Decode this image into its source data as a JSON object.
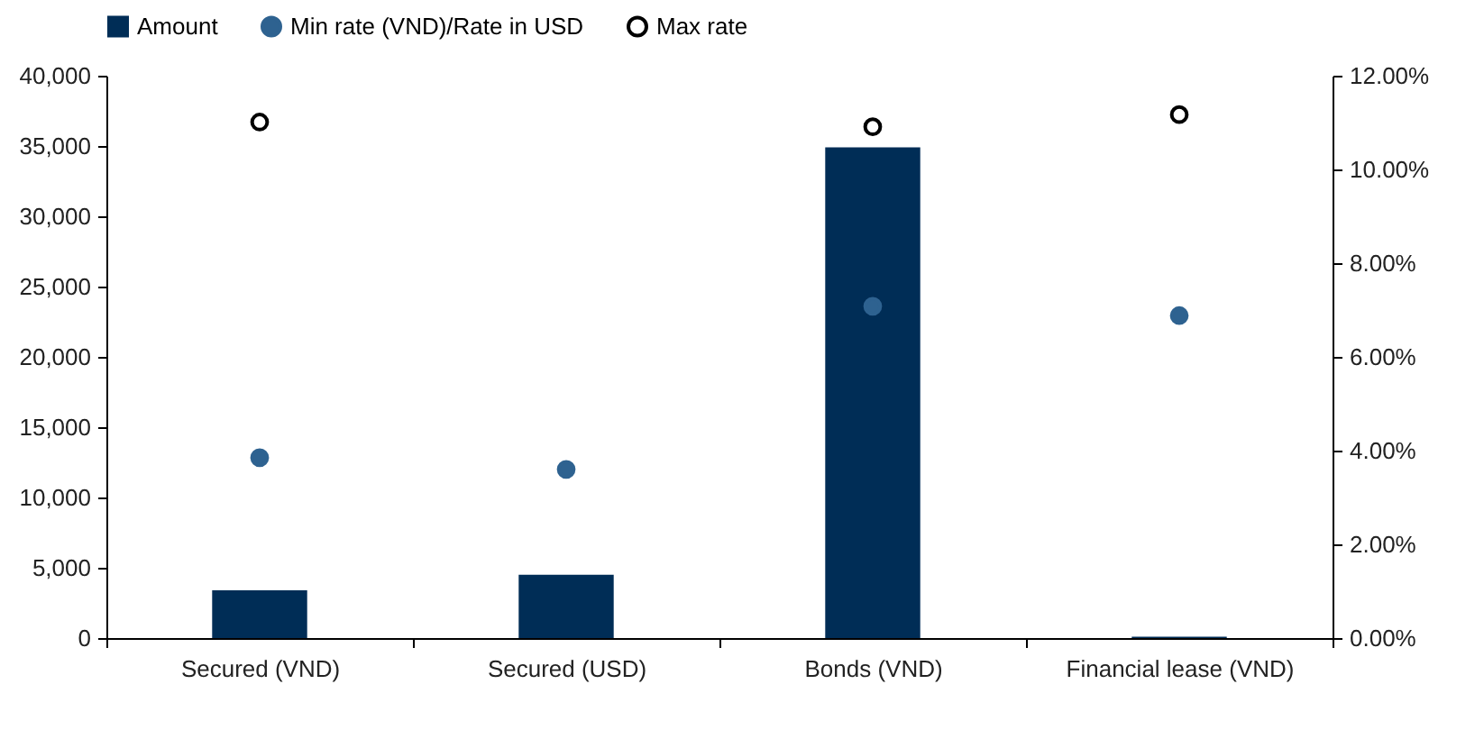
{
  "chart_data": {
    "type": "bar",
    "categories": [
      "Secured (VND)",
      "Secured (USD)",
      "Bonds (VND)",
      "Financial lease (VND)"
    ],
    "series": [
      {
        "name": "Amount",
        "color": "#002d56",
        "values": [
          3400,
          4500,
          34900,
          100
        ]
      },
      {
        "name": "Min rate (VND)/Rate in USD",
        "type": "scatter",
        "axis": "y2",
        "color": "#2e6290",
        "marker": "circle",
        "values": [
          3.85,
          3.6,
          7.08,
          6.88
        ]
      },
      {
        "name": "Max rate",
        "type": "scatter",
        "axis": "y2",
        "color": "#000000",
        "values": [
          11.01,
          null,
          10.91,
          11.17
        ]
      }
    ],
    "ylim": [
      0,
      40000
    ],
    "yticks": [
      0,
      {
        "value": 5000,
        "label": "5,000"
      },
      {
        "value": 10000,
        "label": "10,000"
      },
      {
        "value": 15000,
        "label": "15,000"
      },
      {
        "value": 20000,
        "label": "20,000"
      },
      {
        "value": 25000,
        "label": "25,000"
      },
      {
        "value": 30000,
        "label": "30,000"
      },
      {
        "value": 35000,
        "label": "35,000"
      },
      {
        "value": 40000,
        "label": "40,000"
      }
    ],
    "y2lim": [
      0,
      12
    ],
    "y2ticks": [
      {
        "value": 0,
        "label": "0.00%"
      },
      {
        "value": 2,
        "label": "2.00%"
      },
      {
        "value": 4,
        "label": "4.00%"
      },
      {
        "value": 6,
        "label": "6.00%"
      },
      {
        "value": 8,
        "label": "8.00%"
      },
      {
        "value": 10,
        "label": "10.00%"
      },
      {
        "value": 12,
        "label": "12.00%"
      }
    ],
    "legend": "top",
    "grid": false
  }
}
